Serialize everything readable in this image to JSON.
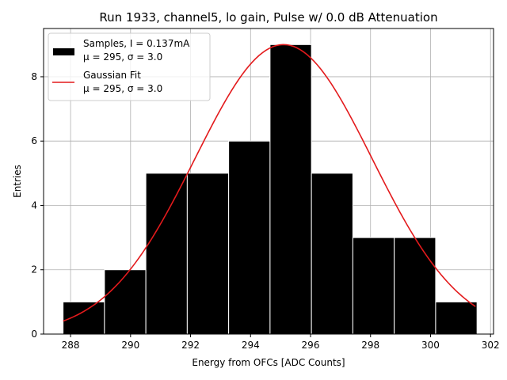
{
  "chart_data": {
    "type": "bar",
    "title": "Run 1933, channel5, lo gain, Pulse w/ 0.0 dB Attenuation",
    "xlabel": "Energy from OFCs [ADC Counts]",
    "ylabel": "Entries",
    "xlim": [
      287.1,
      302.1
    ],
    "ylim": [
      0,
      9.5
    ],
    "xticks": [
      288,
      290,
      292,
      294,
      296,
      298,
      300,
      302
    ],
    "yticks": [
      0,
      2,
      4,
      6,
      8
    ],
    "grid": true,
    "legend_position": "top-left",
    "histogram": {
      "name_line1": "Samples, I = 0.137mA",
      "name_line2": "μ = 295, σ = 3.0",
      "color": "#000000",
      "edge_color": "#ffffff",
      "bin_edges": [
        287.75,
        289.13,
        290.51,
        291.89,
        293.27,
        294.65,
        296.03,
        297.41,
        298.79,
        300.17,
        301.55
      ],
      "counts": [
        1,
        2,
        5,
        5,
        6,
        9,
        5,
        3,
        3,
        1
      ]
    },
    "fit": {
      "name_line1": "Gaussian Fit",
      "name_line2": "μ = 295, σ = 3.0",
      "color": "#e31a1c",
      "amplitude": 9.0,
      "mu": 295.1,
      "sigma": 2.95,
      "x_range": [
        287.75,
        301.5
      ]
    }
  }
}
